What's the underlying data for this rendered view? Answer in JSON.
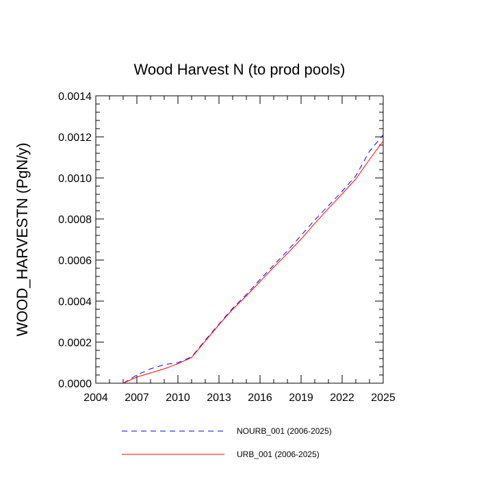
{
  "chart_data": {
    "type": "line",
    "title": "Wood Harvest N (to prod pools)",
    "xlabel": "",
    "ylabel": "WOOD_HARVESTN  (PgN/y)",
    "xlim": [
      2004,
      2025
    ],
    "ylim": [
      0,
      0.0014
    ],
    "xticks": [
      2004,
      2007,
      2010,
      2013,
      2016,
      2019,
      2022,
      2025
    ],
    "xtick_labels": [
      "2004",
      "2007",
      "2010",
      "2013",
      "2016",
      "2019",
      "2022",
      "2025"
    ],
    "yticks": [
      0,
      0.0002,
      0.0004,
      0.0006,
      0.0008,
      0.001,
      0.0012,
      0.0014
    ],
    "ytick_labels": [
      "0.0000",
      "0.0002",
      "0.0004",
      "0.0006",
      "0.0008",
      "0.0010",
      "0.0012",
      "0.0014"
    ],
    "x": [
      2006,
      2007,
      2008,
      2009,
      2010,
      2011,
      2012,
      2013,
      2014,
      2015,
      2016,
      2017,
      2018,
      2019,
      2020,
      2021,
      2022,
      2023,
      2024,
      2025
    ],
    "series": [
      {
        "name": "NOURB_001 (2006-2025)",
        "color": "#0000ff",
        "dash": "dashed",
        "values": [
          0.0,
          4e-05,
          7e-05,
          9e-05,
          0.0001,
          0.000128,
          0.00021,
          0.000288,
          0.000365,
          0.000432,
          0.000505,
          0.000575,
          0.000645,
          0.00072,
          0.000795,
          0.000865,
          0.000935,
          0.00101,
          0.00113,
          0.00121
        ]
      },
      {
        "name": "URB_001 (2006-2025)",
        "color": "#ff0000",
        "dash": "solid",
        "values": [
          0.0,
          3e-05,
          5e-05,
          7e-05,
          9.5e-05,
          0.000125,
          0.000205,
          0.000285,
          0.00036,
          0.000425,
          0.000495,
          0.000565,
          0.000632,
          0.000702,
          0.000778,
          0.000851,
          0.000922,
          0.000995,
          0.00109,
          0.00118
        ]
      }
    ],
    "legend_position": "bottom",
    "grid": false
  }
}
